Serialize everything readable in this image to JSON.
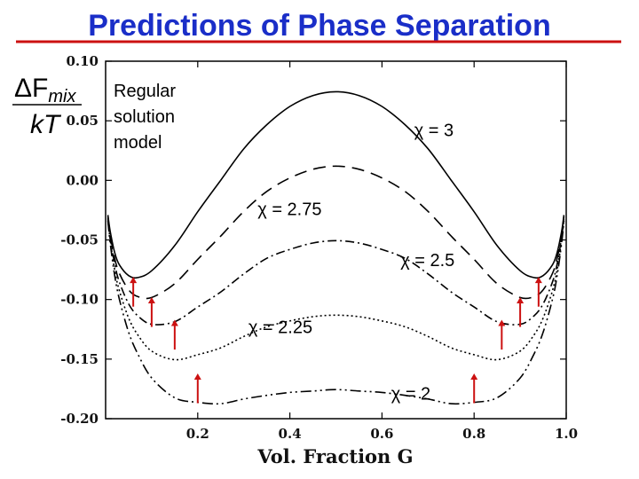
{
  "title": "Predictions of Phase Separation",
  "ylabel": {
    "delta": "ΔF",
    "sub": "mix",
    "den": "kT"
  },
  "model_label": [
    "Regular",
    "solution",
    "model"
  ],
  "colors": {
    "title": "#1a2ec8",
    "underline": "#cc1111",
    "arrow": "#cc1111",
    "curve": "#000000"
  },
  "chart_data": {
    "type": "line",
    "title": "Predictions of Phase Separation",
    "xlabel": "Vol. Fraction G",
    "xlim": [
      0,
      1.0
    ],
    "ylim": [
      -0.2,
      0.1
    ],
    "xticks": [
      {
        "v": 0.2,
        "label": "0.2"
      },
      {
        "v": 0.4,
        "label": "0.4"
      },
      {
        "v": 0.6,
        "label": "0.6"
      },
      {
        "v": 0.8,
        "label": "0.8"
      },
      {
        "v": 1.0,
        "label": "1.0"
      }
    ],
    "yticks": [
      {
        "v": 0.1,
        "label": "0.10"
      },
      {
        "v": 0.05,
        "label": "0.05"
      },
      {
        "v": 0.0,
        "label": "0.00"
      },
      {
        "v": -0.05,
        "label": "-0.05"
      },
      {
        "v": -0.1,
        "label": "-0.10"
      },
      {
        "v": -0.15,
        "label": "-0.15"
      },
      {
        "v": -0.2,
        "label": "-0.20"
      }
    ],
    "x": [
      0.005,
      0.01,
      0.02,
      0.03,
      0.05,
      0.07,
      0.1,
      0.15,
      0.2,
      0.25,
      0.3,
      0.35,
      0.4,
      0.45,
      0.5,
      0.55,
      0.6,
      0.65,
      0.7,
      0.75,
      0.8,
      0.85,
      0.9,
      0.93,
      0.95,
      0.97,
      0.98,
      0.99,
      0.995
    ],
    "series": [
      {
        "chi": 3,
        "label": "χ = 3",
        "dash": "none",
        "values": [
          -0.0291,
          -0.0429,
          -0.061,
          -0.071,
          -0.0799,
          -0.0816,
          -0.0758,
          -0.0548,
          -0.0263,
          0.0002,
          0.0265,
          0.0467,
          0.062,
          0.0712,
          0.0744,
          0.0712,
          0.062,
          0.0467,
          0.0265,
          0.0002,
          -0.0263,
          -0.0548,
          -0.0758,
          -0.0816,
          -0.0799,
          -0.071,
          -0.061,
          -0.0429,
          -0.0291
        ]
      },
      {
        "chi": 2.75,
        "label": "χ = 2.75",
        "dash": "14 8",
        "values": [
          -0.0303,
          -0.0454,
          -0.0659,
          -0.0782,
          -0.0918,
          -0.0976,
          -0.0983,
          -0.0867,
          -0.0663,
          -0.0467,
          -0.026,
          -0.0093,
          0.002,
          0.0093,
          0.0119,
          0.0093,
          0.002,
          -0.0093,
          -0.026,
          -0.0467,
          -0.0663,
          -0.0867,
          -0.0983,
          -0.0976,
          -0.0918,
          -0.0782,
          -0.0659,
          -0.0454,
          -0.0303
        ]
      },
      {
        "chi": 2.5,
        "label": "χ = 2.5",
        "dash": "10 4 2 4",
        "values": [
          -0.0316,
          -0.0478,
          -0.0708,
          -0.0855,
          -0.1036,
          -0.1137,
          -0.1208,
          -0.1186,
          -0.1063,
          -0.0936,
          -0.0785,
          -0.0654,
          -0.058,
          -0.0526,
          -0.0506,
          -0.0526,
          -0.058,
          -0.0654,
          -0.0785,
          -0.0936,
          -0.1063,
          -0.1186,
          -0.1208,
          -0.1137,
          -0.1036,
          -0.0855,
          -0.0708,
          -0.0478,
          -0.0316
        ]
      },
      {
        "chi": 2.25,
        "label": "χ = 2.25",
        "dash": "2 3",
        "values": [
          -0.0328,
          -0.0503,
          -0.0757,
          -0.0928,
          -0.1155,
          -0.1297,
          -0.1433,
          -0.1505,
          -0.1463,
          -0.1405,
          -0.131,
          -0.1229,
          -0.118,
          -0.1144,
          -0.1131,
          -0.1144,
          -0.118,
          -0.1229,
          -0.131,
          -0.1405,
          -0.1463,
          -0.1505,
          -0.1433,
          -0.1297,
          -0.1155,
          -0.0928,
          -0.0757,
          -0.0503,
          -0.0328
        ]
      },
      {
        "chi": 2,
        "label": "χ = 2",
        "dash": "12 4 2 4 2 4",
        "values": [
          -0.0341,
          -0.0528,
          -0.0806,
          -0.1001,
          -0.1274,
          -0.1457,
          -0.1658,
          -0.1824,
          -0.1863,
          -0.1874,
          -0.1835,
          -0.1804,
          -0.178,
          -0.1768,
          -0.1756,
          -0.1768,
          -0.178,
          -0.1804,
          -0.1835,
          -0.1874,
          -0.1863,
          -0.1824,
          -0.1658,
          -0.1457,
          -0.1274,
          -0.1001,
          -0.0806,
          -0.0528,
          -0.0341
        ]
      }
    ],
    "arrows": [
      {
        "x": 0.06,
        "y": -0.081,
        "len": 0.025
      },
      {
        "x": 0.94,
        "y": -0.081,
        "len": 0.025
      },
      {
        "x": 0.1,
        "y": -0.098,
        "len": 0.025
      },
      {
        "x": 0.9,
        "y": -0.098,
        "len": 0.025
      },
      {
        "x": 0.15,
        "y": -0.117,
        "len": 0.025
      },
      {
        "x": 0.86,
        "y": -0.117,
        "len": 0.025
      },
      {
        "x": 0.2,
        "y": -0.162,
        "len": 0.025
      },
      {
        "x": 0.8,
        "y": -0.162,
        "len": 0.025
      }
    ],
    "annotations": [
      {
        "text": "χ = 3",
        "x": 0.67,
        "y": 0.037
      },
      {
        "text": "χ = 2.75",
        "x": 0.33,
        "y": -0.029
      },
      {
        "text": "χ = 2.5",
        "x": 0.64,
        "y": -0.072
      },
      {
        "text": "χ = 2.25",
        "x": 0.31,
        "y": -0.128
      },
      {
        "text": "χ = 2",
        "x": 0.62,
        "y": -0.184
      }
    ]
  }
}
